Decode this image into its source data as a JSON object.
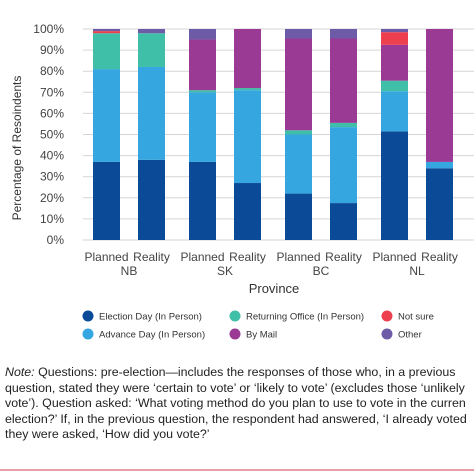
{
  "chart_data": {
    "type": "bar",
    "stacked": true,
    "ylabel": "Percentage of Resoindents",
    "xlabel": "Province",
    "yticks": [
      "0%",
      "10%",
      "20%",
      "30%",
      "40%",
      "50%",
      "60%",
      "70%",
      "80%",
      "90%",
      "100%"
    ],
    "ylim": [
      0,
      100
    ],
    "grid": true,
    "legend_position": "bottom",
    "groups": [
      {
        "name": "NB",
        "bars": [
          "Planned",
          "Reality"
        ]
      },
      {
        "name": "SK",
        "bars": [
          "Planned",
          "Reality"
        ]
      },
      {
        "name": "BC",
        "bars": [
          "Planned",
          "Reality"
        ]
      },
      {
        "name": "NL",
        "bars": [
          "Planned",
          "Reality"
        ]
      }
    ],
    "series": [
      {
        "name": "Election Day (In Person)",
        "color": "#0b4a96",
        "values": [
          37,
          38,
          37,
          27,
          22,
          17.5,
          51.5,
          34
        ]
      },
      {
        "name": "Advance Day (In Person)",
        "color": "#35a6e0",
        "values": [
          44,
          44,
          33,
          44,
          28,
          36,
          19,
          3
        ]
      },
      {
        "name": "Returning Office (In Person)",
        "color": "#3fbfa8",
        "values": [
          17,
          16,
          1,
          1,
          2,
          2,
          5,
          0
        ]
      },
      {
        "name": "By Mail",
        "color": "#9b3a94",
        "values": [
          0,
          0,
          24,
          28,
          43.5,
          40,
          17,
          63
        ]
      },
      {
        "name": "Not sure",
        "color": "#ee3f4f",
        "values": [
          1,
          0,
          0,
          0,
          0,
          0,
          6,
          0
        ]
      },
      {
        "name": "Other",
        "color": "#6e5ba8",
        "values": [
          1,
          2,
          5,
          0,
          4.5,
          4.5,
          1.5,
          0
        ]
      }
    ]
  },
  "note": {
    "label": "Note:",
    "lines": [
      " Questions: pre-election—includes the responses of those who, in a previous",
      "question, stated they were ‘certain to vote’ or ‘likely to vote’ (excludes those ‘unlikely",
      "vote’). Question asked: ‘What voting method do you plan to use to vote in the curren",
      "election?’ If, in the previous question, the respondent had answered, ‘I already voted",
      "they were asked, ‘How did you vote?’"
    ]
  }
}
